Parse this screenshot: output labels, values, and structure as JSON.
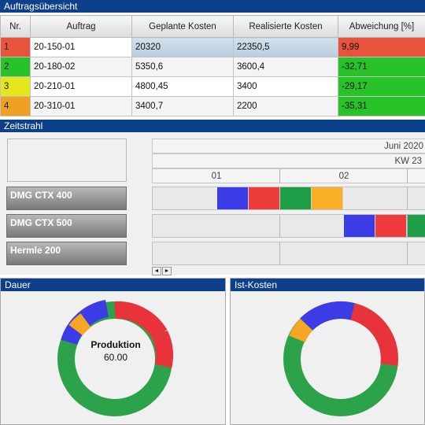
{
  "orders": {
    "title": "Auftragsübersicht",
    "columns": [
      "Nr.",
      "Auftrag",
      "Geplante Kosten",
      "Realisierte Kosten",
      "Abweichung [%]"
    ],
    "rows": [
      {
        "nr": "1",
        "auftrag": "20-150-01",
        "geplant": "20320",
        "realisiert": "22350,5",
        "abweichung": "9,99",
        "nr_color": "#e8533d",
        "dev_color": "#e8533d"
      },
      {
        "nr": "2",
        "auftrag": "20-180-02",
        "geplant": "5350,6",
        "realisiert": "3600,4",
        "abweichung": "-32,71",
        "nr_color": "#28c328",
        "dev_color": "#28c328"
      },
      {
        "nr": "3",
        "auftrag": "20-210-01",
        "geplant": "4800,45",
        "realisiert": "3400",
        "abweichung": "-29,17",
        "nr_color": "#e6e61e",
        "dev_color": "#28c328"
      },
      {
        "nr": "4",
        "auftrag": "20-310-01",
        "geplant": "3400,7",
        "realisiert": "2200",
        "abweichung": "-35,31",
        "nr_color": "#f0a020",
        "dev_color": "#28c328"
      }
    ]
  },
  "timeline": {
    "title": "Zeitstrahl",
    "month": "Juni 2020",
    "week": "KW 23",
    "days": [
      "01",
      "02"
    ],
    "machines": [
      {
        "name": "DMG CTX 400",
        "blocks": [
          "#3c3ce6",
          "#ee3c3c",
          "#1e9e46",
          "#f8b028"
        ]
      },
      {
        "name": "DMG CTX 500",
        "blocks": [
          "#3c3ce6",
          "#ee3c3c",
          "#1e9e46"
        ]
      },
      {
        "name": "Hermle 200",
        "blocks": []
      }
    ],
    "scroll_left": "◄",
    "scroll_right": "►"
  },
  "dauer": {
    "title": "Dauer",
    "center_label": "Produktion",
    "center_value": "60.00"
  },
  "istkosten": {
    "title": "Ist-Kosten"
  },
  "colors": {
    "accent": "#0e3f8a",
    "red": "#e8333a",
    "blue": "#3c3ce6",
    "green": "#2ca34a",
    "orange": "#f5a623"
  }
}
